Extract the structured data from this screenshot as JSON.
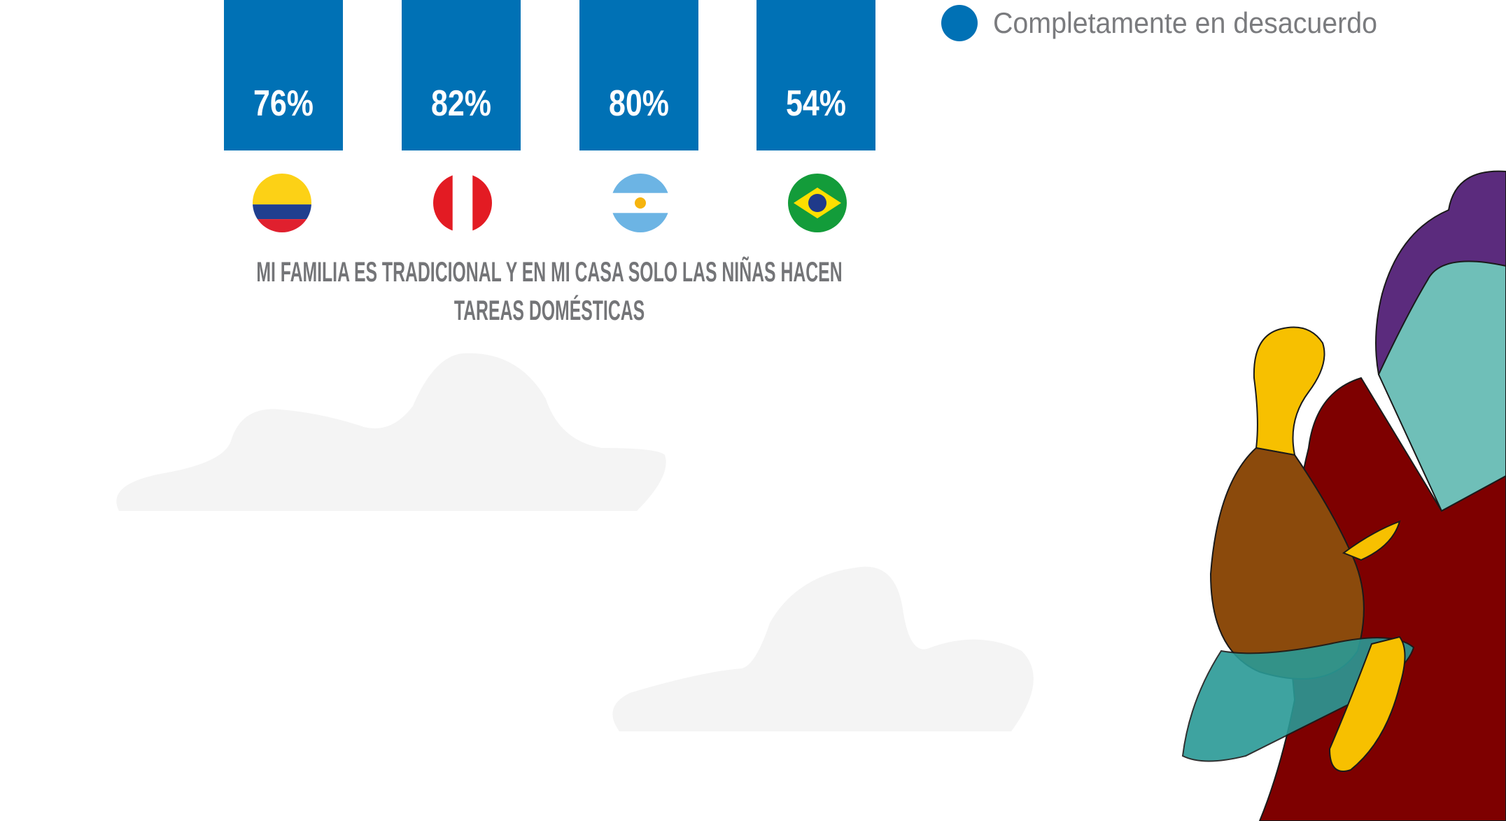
{
  "chart_data": {
    "type": "bar",
    "title": "MI FAMILIA ES TRADICIONAL Y EN MI CASA SOLO LAS NIÑAS HACEN TAREAS DOMÉSTICAS",
    "categories": [
      null,
      null,
      null,
      null
    ],
    "series": [
      {
        "name": "Completamente en desacuerdo",
        "color": "#0071b5",
        "values": [
          76,
          82,
          80,
          54
        ],
        "value_labels": [
          "76%",
          "82%",
          "80%",
          "54%"
        ]
      }
    ]
  }
}
